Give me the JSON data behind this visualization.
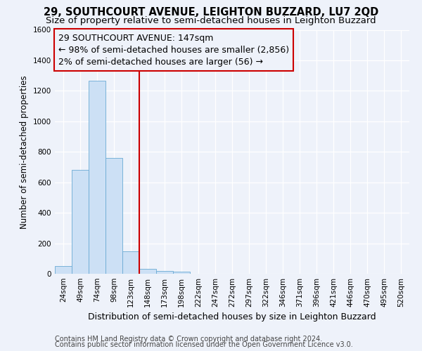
{
  "title": "29, SOUTHCOURT AVENUE, LEIGHTON BUZZARD, LU7 2QD",
  "subtitle": "Size of property relative to semi-detached houses in Leighton Buzzard",
  "xlabel": "Distribution of semi-detached houses by size in Leighton Buzzard",
  "ylabel": "Number of semi-detached properties",
  "footer_line1": "Contains HM Land Registry data © Crown copyright and database right 2024.",
  "footer_line2": "Contains public sector information licensed under the Open Government Licence v3.0.",
  "categories": [
    "24sqm",
    "49sqm",
    "74sqm",
    "98sqm",
    "123sqm",
    "148sqm",
    "173sqm",
    "198sqm",
    "222sqm",
    "247sqm",
    "272sqm",
    "297sqm",
    "322sqm",
    "346sqm",
    "371sqm",
    "396sqm",
    "421sqm",
    "446sqm",
    "470sqm",
    "495sqm",
    "520sqm"
  ],
  "values": [
    50,
    680,
    1265,
    760,
    148,
    33,
    20,
    13,
    0,
    0,
    0,
    0,
    0,
    0,
    0,
    0,
    0,
    0,
    0,
    0,
    0
  ],
  "bar_color": "#cce0f5",
  "bar_edge_color": "#6aaad4",
  "annotation_line1": "29 SOUTHCOURT AVENUE: 147sqm",
  "annotation_line2": "← 98% of semi-detached houses are smaller (2,856)",
  "annotation_line3": "2% of semi-detached houses are larger (56) →",
  "vline_bin_index": 5,
  "vline_color": "#cc0000",
  "box_edge_color": "#cc0000",
  "ylim": [
    0,
    1600
  ],
  "yticks": [
    0,
    200,
    400,
    600,
    800,
    1000,
    1200,
    1400,
    1600
  ],
  "bg_color": "#eef2fa",
  "grid_color": "#ffffff",
  "title_fontsize": 10.5,
  "subtitle_fontsize": 9.5,
  "ylabel_fontsize": 8.5,
  "xlabel_fontsize": 9,
  "tick_fontsize": 7.5,
  "annotation_fontsize": 9,
  "footer_fontsize": 7
}
